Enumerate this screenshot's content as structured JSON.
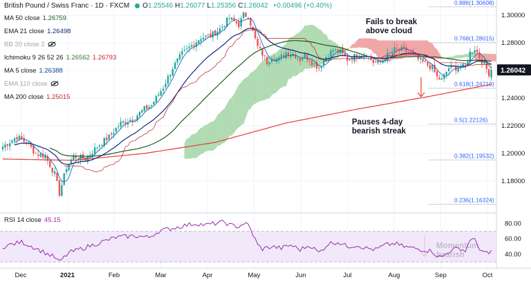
{
  "header": {
    "symbol_title": "British Pound / Swiss Franc · 1D · FXCM",
    "ohlc": [
      {
        "k": "O",
        "v": "1.25546"
      },
      {
        "k": "H",
        "v": "1.26077"
      },
      {
        "k": "L",
        "v": "1.25356"
      },
      {
        "k": "C",
        "v": "1.26042"
      }
    ],
    "change": "+0.00496 (+0.40%)"
  },
  "indicators": [
    {
      "label": "MA 50 close",
      "values": [
        "1.26759"
      ],
      "color": "#1b5e20"
    },
    {
      "label": "EMA 21 close",
      "values": [
        "1.26498"
      ],
      "color": "#0d2a7a"
    },
    {
      "label": "BB 20 close 2",
      "values": [],
      "color": "#9e9e9e",
      "hidden": true
    },
    {
      "label": "Ichimoku 9 26 52 26",
      "values": [
        "1.26562",
        "1.26793"
      ],
      "color": "#2e7d32",
      "value_colors": [
        "#2e7d32",
        "#c62828"
      ]
    },
    {
      "label": "MA 5 close",
      "values": [
        "1.26388"
      ],
      "color": "#0d47a1"
    },
    {
      "label": "EMA 110 close",
      "values": [],
      "color": "#bdbdbd",
      "hidden": true
    },
    {
      "label": "MA 200 close",
      "values": [
        "1.25015"
      ],
      "color": "#c62828"
    }
  ],
  "rsi_legend": {
    "label": "RSI 14 close",
    "value": "45.15",
    "color": "#9c27b0"
  },
  "annotations": {
    "cloud_note": [
      "Fails to break",
      "above cloud"
    ],
    "streak_note": [
      "Pauses 4-day",
      "bearish streak"
    ],
    "momentum_note": [
      "Momentum",
      "bearish"
    ]
  },
  "colors": {
    "up": "#26a69a",
    "down": "#ef5350",
    "rsi": "#9c27b0",
    "ma200": "#e53935",
    "ma50": "#1b5e20",
    "ema21": "#0d2a7a",
    "ma5": "#1565c0",
    "cloud_bull": "#a5d6a7",
    "cloud_bear": "#ef9a9a",
    "fib": "#9aa0b0"
  },
  "chart_data": {
    "type": "line",
    "title": "British Pound / Swiss Franc · 1D · FXCM",
    "price_axis": {
      "ticks": [
        "1.30000",
        "1.28000",
        "1.26000",
        "1.24000",
        "1.22000",
        "1.20000",
        "1.18000"
      ],
      "range": [
        1.157,
        1.311
      ]
    },
    "time_axis": {
      "ticks": [
        "Dec",
        "2021",
        "Feb",
        "Mar",
        "Apr",
        "May",
        "Jun",
        "Jul",
        "Aug",
        "Sep",
        "Oct"
      ]
    },
    "last_price": "1.26042",
    "fib_levels": [
      {
        "label": "0.886(1.30608)",
        "value": 1.30608
      },
      {
        "label": "0.768(1.28015)",
        "value": 1.28015
      },
      {
        "label": "0.618(1.24719)",
        "value": 1.24719
      },
      {
        "label": "0.5(1.22126)",
        "value": 1.22126
      },
      {
        "label": "0.382(1.19532)",
        "value": 1.19532
      },
      {
        "label": "0.236(1.16324)",
        "value": 1.16324
      }
    ],
    "price_keypoints": [
      [
        0,
        1.205
      ],
      [
        6,
        1.212
      ],
      [
        10,
        1.208
      ],
      [
        14,
        1.2
      ],
      [
        18,
        1.198
      ],
      [
        22,
        1.185
      ],
      [
        24,
        1.171
      ],
      [
        27,
        1.19
      ],
      [
        30,
        1.198
      ],
      [
        35,
        1.196
      ],
      [
        40,
        1.205
      ],
      [
        45,
        1.212
      ],
      [
        50,
        1.222
      ],
      [
        55,
        1.225
      ],
      [
        60,
        1.232
      ],
      [
        63,
        1.235
      ],
      [
        68,
        1.248
      ],
      [
        72,
        1.262
      ],
      [
        76,
        1.272
      ],
      [
        80,
        1.278
      ],
      [
        84,
        1.284
      ],
      [
        88,
        1.285
      ],
      [
        92,
        1.29
      ],
      [
        96,
        1.298
      ],
      [
        100,
        1.293
      ],
      [
        102,
        1.3
      ],
      [
        104,
        1.3
      ],
      [
        106,
        1.288
      ],
      [
        108,
        1.277
      ],
      [
        110,
        1.272
      ],
      [
        112,
        1.266
      ],
      [
        114,
        1.27
      ],
      [
        117,
        1.268
      ],
      [
        120,
        1.273
      ],
      [
        123,
        1.272
      ],
      [
        126,
        1.268
      ],
      [
        128,
        1.271
      ],
      [
        131,
        1.266
      ],
      [
        134,
        1.262
      ],
      [
        137,
        1.27
      ],
      [
        140,
        1.275
      ],
      [
        143,
        1.273
      ],
      [
        146,
        1.268
      ],
      [
        150,
        1.271
      ],
      [
        154,
        1.272
      ],
      [
        157,
        1.266
      ],
      [
        160,
        1.266
      ],
      [
        163,
        1.271
      ],
      [
        166,
        1.275
      ],
      [
        170,
        1.275
      ],
      [
        173,
        1.272
      ],
      [
        176,
        1.268
      ],
      [
        179,
        1.265
      ],
      [
        182,
        1.262
      ],
      [
        184,
        1.255
      ],
      [
        186,
        1.253
      ],
      [
        189,
        1.262
      ],
      [
        192,
        1.262
      ],
      [
        196,
        1.263
      ],
      [
        198,
        1.273
      ],
      [
        200,
        1.276
      ],
      [
        202,
        1.27
      ],
      [
        204,
        1.264
      ],
      [
        206,
        1.258
      ],
      [
        207,
        1.26
      ]
    ],
    "ma200": [
      [
        0,
        1.196
      ],
      [
        30,
        1.195
      ],
      [
        60,
        1.2
      ],
      [
        90,
        1.208
      ],
      [
        120,
        1.222
      ],
      [
        150,
        1.232
      ],
      [
        180,
        1.241
      ],
      [
        207,
        1.25
      ]
    ],
    "rsi": {
      "label": "RSI 14 close",
      "last": 45.15,
      "ticks": [
        "80.00",
        "60.00",
        "40.00"
      ],
      "band": [
        30,
        70
      ],
      "range": [
        22,
        92
      ],
      "keypoints": [
        [
          0,
          50
        ],
        [
          8,
          56
        ],
        [
          14,
          48
        ],
        [
          18,
          42
        ],
        [
          22,
          36
        ],
        [
          24,
          30
        ],
        [
          28,
          42
        ],
        [
          34,
          48
        ],
        [
          40,
          54
        ],
        [
          48,
          62
        ],
        [
          56,
          64
        ],
        [
          62,
          62
        ],
        [
          66,
          70
        ],
        [
          72,
          74
        ],
        [
          78,
          78
        ],
        [
          82,
          80
        ],
        [
          86,
          78
        ],
        [
          90,
          80
        ],
        [
          94,
          82
        ],
        [
          96,
          78
        ],
        [
          100,
          76
        ],
        [
          102,
          80
        ],
        [
          104,
          78
        ],
        [
          106,
          66
        ],
        [
          108,
          52
        ],
        [
          110,
          47
        ],
        [
          114,
          50
        ],
        [
          118,
          48
        ],
        [
          122,
          52
        ],
        [
          126,
          46
        ],
        [
          130,
          52
        ],
        [
          134,
          42
        ],
        [
          138,
          54
        ],
        [
          142,
          56
        ],
        [
          146,
          50
        ],
        [
          150,
          52
        ],
        [
          154,
          48
        ],
        [
          158,
          46
        ],
        [
          162,
          52
        ],
        [
          166,
          54
        ],
        [
          170,
          50
        ],
        [
          174,
          48
        ],
        [
          178,
          46
        ],
        [
          182,
          44
        ],
        [
          184,
          38
        ],
        [
          186,
          36
        ],
        [
          190,
          46
        ],
        [
          194,
          48
        ],
        [
          196,
          44
        ],
        [
          198,
          60
        ],
        [
          200,
          58
        ],
        [
          202,
          48
        ],
        [
          204,
          42
        ],
        [
          206,
          40
        ],
        [
          207,
          45
        ]
      ]
    }
  }
}
